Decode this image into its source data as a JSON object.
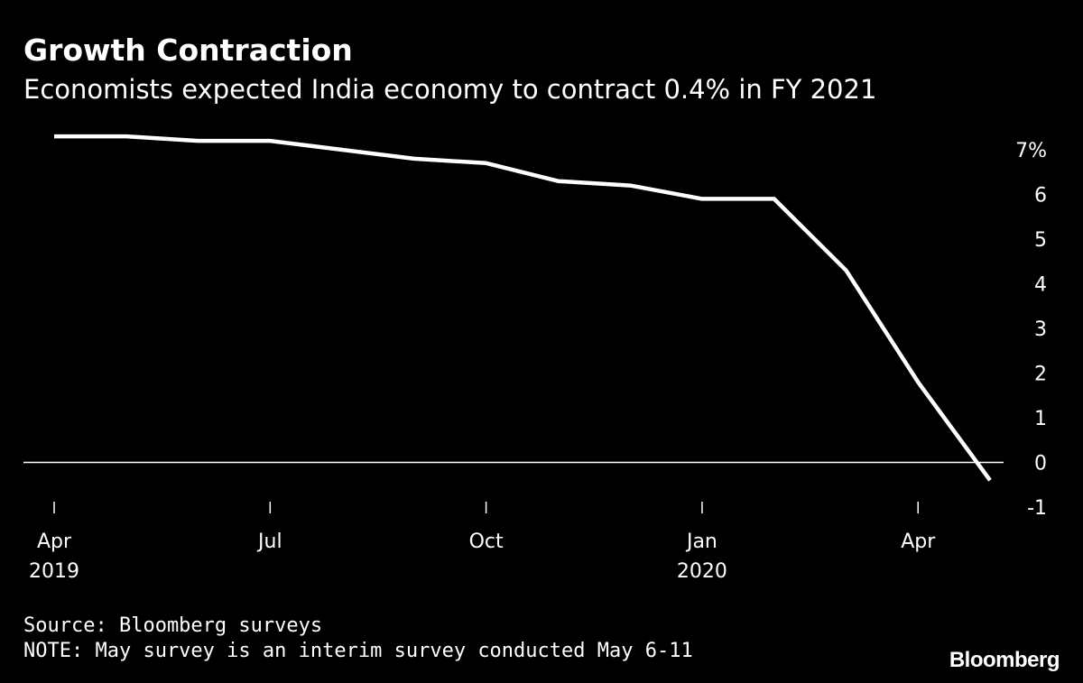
{
  "title": "Growth Contraction",
  "subtitle": "Economists expected India economy to contract 0.4% in FY 2021",
  "source": "Source: Bloomberg surveys",
  "note": "NOTE: May survey is an interim survey conducted May 6-11",
  "logo": "Bloomberg",
  "colors": {
    "background": "#000000",
    "line": "#ffffff",
    "text": "#ffffff"
  },
  "chart_data": {
    "type": "line",
    "x": [
      "2019-04",
      "2019-05",
      "2019-06",
      "2019-07",
      "2019-08",
      "2019-09",
      "2019-10",
      "2019-11",
      "2019-12",
      "2020-01",
      "2020-02",
      "2020-03",
      "2020-04",
      "2020-05"
    ],
    "series": [
      {
        "values": [
          7.3,
          7.3,
          7.2,
          7.2,
          7.0,
          6.8,
          6.7,
          6.3,
          6.2,
          5.9,
          5.9,
          4.3,
          1.8,
          -0.4
        ]
      }
    ],
    "ylim": [
      -1,
      7
    ],
    "y_ticks": [
      7,
      6,
      5,
      4,
      3,
      2,
      1,
      0,
      -1
    ],
    "y_tick_labels": [
      "7%",
      "6",
      "5",
      "4",
      "3",
      "2",
      "1",
      "0",
      "-1"
    ],
    "y_axis_position": "right",
    "x_ticks": [
      {
        "x": "2019-04",
        "label": "Apr",
        "year": "2019"
      },
      {
        "x": "2019-07",
        "label": "Jul",
        "year": ""
      },
      {
        "x": "2019-10",
        "label": "Oct",
        "year": ""
      },
      {
        "x": "2020-01",
        "label": "Jan",
        "year": "2020"
      },
      {
        "x": "2020-04",
        "label": "Apr",
        "year": ""
      }
    ],
    "zero_line": true,
    "grid": false
  }
}
